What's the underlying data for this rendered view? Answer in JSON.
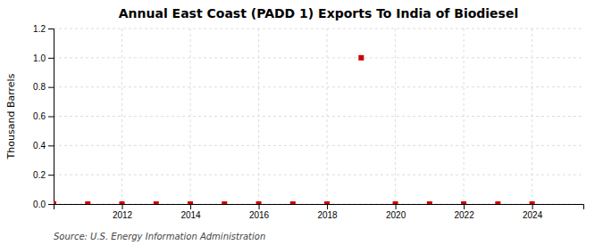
{
  "chart_data": {
    "type": "scatter",
    "title": "Annual East Coast (PADD 1) Exports To India of Biodiesel",
    "ylabel": "Thousand Barrels",
    "source": "Source: U.S. Energy Information Administration",
    "x": [
      2010,
      2011,
      2012,
      2013,
      2014,
      2015,
      2016,
      2017,
      2018,
      2019,
      2020,
      2021,
      2022,
      2023,
      2024
    ],
    "values": [
      0,
      0,
      0,
      0,
      0,
      0,
      0,
      0,
      0,
      1.0,
      0,
      0,
      0,
      0,
      0
    ],
    "color": "#cc0000",
    "marker": "square",
    "xlim": [
      2010.0,
      2025.5
    ],
    "ylim": [
      0.0,
      1.2
    ],
    "xticks": [
      2012,
      2014,
      2016,
      2018,
      2020,
      2022,
      2024
    ],
    "yticks": [
      {
        "value": 0.0,
        "label": "0.0"
      },
      0.2,
      0.4,
      0.6,
      0.8,
      {
        "value": 1.0,
        "label": "1.0"
      },
      1.2
    ],
    "grid": true
  }
}
